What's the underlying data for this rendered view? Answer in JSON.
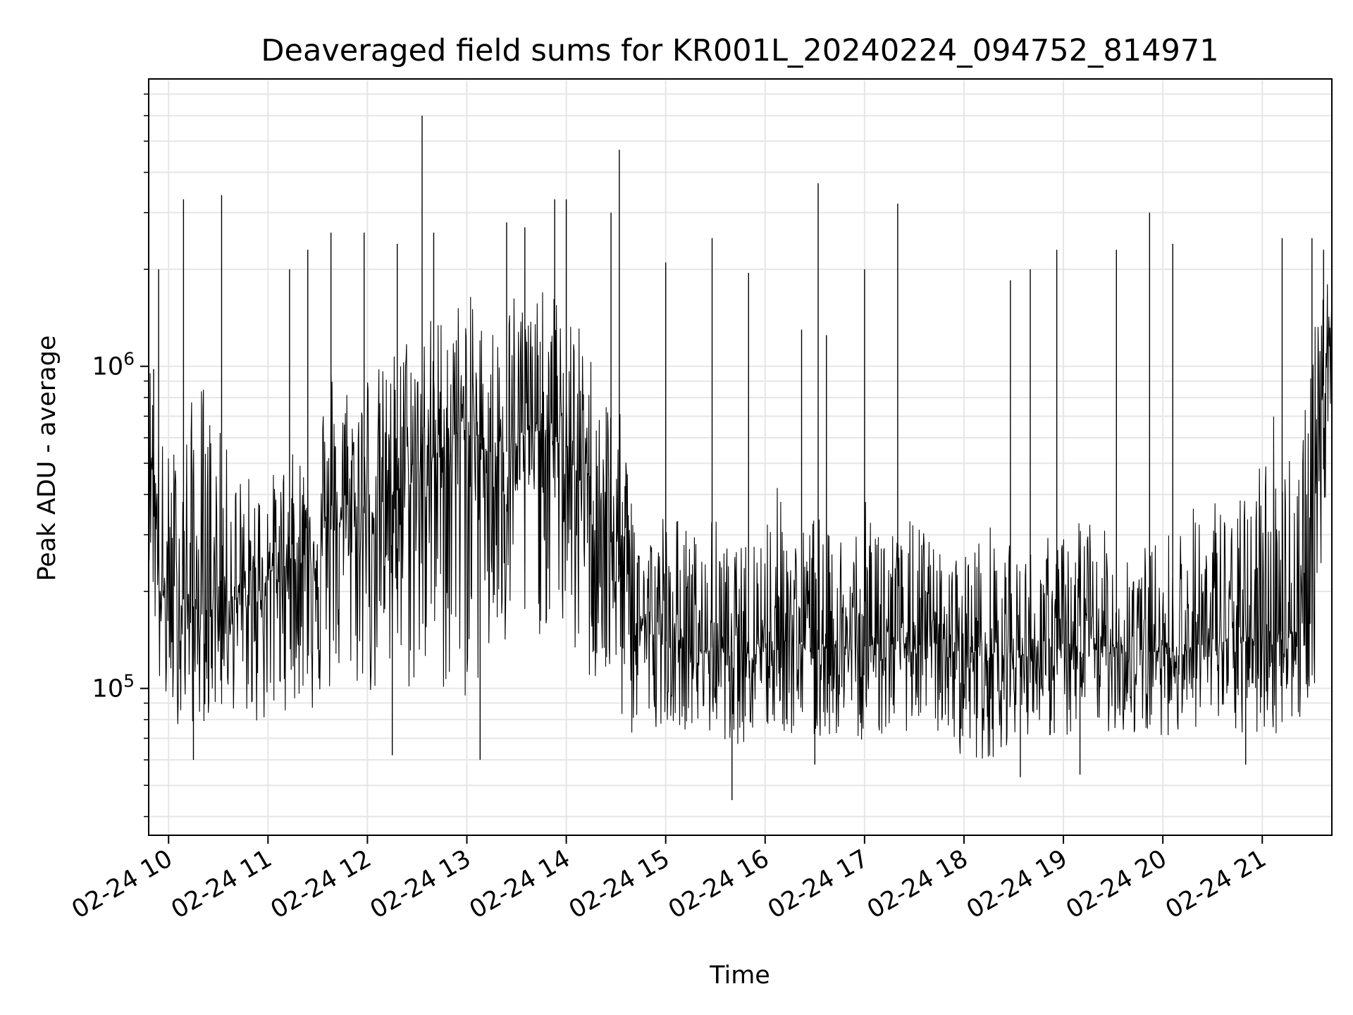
{
  "chart_data": {
    "type": "line",
    "title": "Deaveraged field sums for KR001L_20240224_094752_814971",
    "xlabel": "Time",
    "ylabel": "Peak ADU - average",
    "xscale": "date",
    "yscale": "log",
    "xlim": [
      "2024-02-24 09:48",
      "2024-02-24 21:42"
    ],
    "ylim": [
      35000,
      7800000
    ],
    "grid": true,
    "line_color": "#000000",
    "grid_color": "#e6e6e6",
    "x_ticks": [
      "2024-02-24 10:00",
      "2024-02-24 11:00",
      "2024-02-24 12:00",
      "2024-02-24 13:00",
      "2024-02-24 14:00",
      "2024-02-24 15:00",
      "2024-02-24 16:00",
      "2024-02-24 17:00",
      "2024-02-24 18:00",
      "2024-02-24 19:00",
      "2024-02-24 20:00",
      "2024-02-24 21:00"
    ],
    "x_tick_labels": [
      "02-24 10",
      "02-24 11",
      "02-24 12",
      "02-24 13",
      "02-24 14",
      "02-24 15",
      "02-24 16",
      "02-24 17",
      "02-24 18",
      "02-24 19",
      "02-24 20",
      "02-24 21"
    ],
    "y_ticks": [
      100000,
      1000000
    ],
    "y_tick_labels": [
      {
        "base": "10",
        "exp": "5"
      },
      {
        "base": "10",
        "exp": "6"
      }
    ],
    "series": [
      {
        "x": [
          "2024-02-24 09:48",
          "2024-02-24 09:55",
          "2024-02-24 10:00",
          "2024-02-24 10:10",
          "2024-02-24 10:20",
          "2024-02-24 10:30",
          "2024-02-24 10:40",
          "2024-02-24 10:50",
          "2024-02-24 11:00",
          "2024-02-24 11:10",
          "2024-02-24 11:20",
          "2024-02-24 11:30",
          "2024-02-24 11:40",
          "2024-02-24 11:50",
          "2024-02-24 12:00",
          "2024-02-24 12:10",
          "2024-02-24 12:20",
          "2024-02-24 12:30",
          "2024-02-24 12:40",
          "2024-02-24 12:50",
          "2024-02-24 13:00",
          "2024-02-24 13:10",
          "2024-02-24 13:20",
          "2024-02-24 13:30",
          "2024-02-24 13:40",
          "2024-02-24 13:50",
          "2024-02-24 14:00",
          "2024-02-24 14:10",
          "2024-02-24 14:20",
          "2024-02-24 14:30",
          "2024-02-24 14:40",
          "2024-02-24 14:50",
          "2024-02-24 15:00",
          "2024-02-24 15:10",
          "2024-02-24 15:20",
          "2024-02-24 15:30",
          "2024-02-24 15:40",
          "2024-02-24 15:50",
          "2024-02-24 16:00",
          "2024-02-24 16:10",
          "2024-02-24 16:20",
          "2024-02-24 16:30",
          "2024-02-24 16:40",
          "2024-02-24 16:50",
          "2024-02-24 17:00",
          "2024-02-24 17:10",
          "2024-02-24 17:20",
          "2024-02-24 17:30",
          "2024-02-24 17:40",
          "2024-02-24 17:50",
          "2024-02-24 18:00",
          "2024-02-24 18:10",
          "2024-02-24 18:20",
          "2024-02-24 18:30",
          "2024-02-24 18:40",
          "2024-02-24 18:50",
          "2024-02-24 19:00",
          "2024-02-24 19:10",
          "2024-02-24 19:20",
          "2024-02-24 19:30",
          "2024-02-24 19:40",
          "2024-02-24 19:50",
          "2024-02-24 20:00",
          "2024-02-24 20:10",
          "2024-02-24 20:20",
          "2024-02-24 20:30",
          "2024-02-24 20:40",
          "2024-02-24 20:50",
          "2024-02-24 21:00",
          "2024-02-24 21:10",
          "2024-02-24 21:20",
          "2024-02-24 21:30",
          "2024-02-24 21:35",
          "2024-02-24 21:42"
        ],
        "y": [
          800000,
          200000,
          180000,
          190000,
          170000,
          200000,
          190000,
          175000,
          230000,
          240000,
          260000,
          280000,
          320000,
          350000,
          350000,
          380000,
          420000,
          460000,
          520000,
          600000,
          650000,
          560000,
          520000,
          580000,
          650000,
          600000,
          560000,
          420000,
          350000,
          260000,
          180000,
          150000,
          140000,
          140000,
          130000,
          135000,
          130000,
          140000,
          140000,
          145000,
          140000,
          135000,
          140000,
          130000,
          135000,
          140000,
          140000,
          135000,
          140000,
          130000,
          130000,
          130000,
          125000,
          130000,
          125000,
          130000,
          130000,
          130000,
          135000,
          135000,
          130000,
          130000,
          130000,
          130000,
          135000,
          140000,
          140000,
          140000,
          145000,
          150000,
          150000,
          160000,
          700000,
          1500000
        ],
        "low": [
          260000,
          82000,
          80000,
          75000,
          78000,
          80000,
          85000,
          78000,
          70000,
          85000,
          90000,
          78000,
          95000,
          100000,
          92000,
          85000,
          90000,
          95000,
          100000,
          88000,
          90000,
          100000,
          110000,
          120000,
          140000,
          150000,
          140000,
          100000,
          95000,
          80000,
          68000,
          72000,
          80000,
          75000,
          72000,
          70000,
          68000,
          65000,
          70000,
          72000,
          68000,
          65000,
          70000,
          72000,
          68000,
          70000,
          72000,
          75000,
          72000,
          70000,
          60000,
          58000,
          62000,
          70000,
          72000,
          70000,
          68000,
          70000,
          75000,
          72000,
          70000,
          68000,
          72000,
          70000,
          75000,
          72000,
          70000,
          68000,
          70000,
          72000,
          75000,
          80000,
          180000,
          900000
        ],
        "high": [
          1100000,
          650000,
          560000,
          700000,
          1000000,
          650000,
          500000,
          470000,
          450000,
          520000,
          560000,
          800000,
          1200000,
          900000,
          1100000,
          1000000,
          1300000,
          1400000,
          1500000,
          1600000,
          1700000,
          1500000,
          1400000,
          2000000,
          1600000,
          1800000,
          1500000,
          1300000,
          1000000,
          800000,
          500000,
          320000,
          380000,
          340000,
          300000,
          350000,
          260000,
          300000,
          400000,
          450000,
          300000,
          380000,
          300000,
          350000,
          380000,
          420000,
          300000,
          350000,
          300000,
          250000,
          280000,
          300000,
          350000,
          260000,
          280000,
          300000,
          300000,
          400000,
          320000,
          300000,
          320000,
          280000,
          300000,
          350000,
          380000,
          420000,
          380000,
          400000,
          650000,
          900000,
          600000,
          1200000,
          1600000,
          2000000
        ],
        "spikes": [
          [
            "2024-02-24 09:51",
            980000
          ],
          [
            "2024-02-24 09:54",
            2000000
          ],
          [
            "2024-02-24 10:09",
            3300000
          ],
          [
            "2024-02-24 10:32",
            3400000
          ],
          [
            "2024-02-24 11:13",
            2000000
          ],
          [
            "2024-02-24 11:24",
            2300000
          ],
          [
            "2024-02-24 11:38",
            2600000
          ],
          [
            "2024-02-24 11:58",
            2600000
          ],
          [
            "2024-02-24 12:18",
            2400000
          ],
          [
            "2024-02-24 12:33",
            6000000
          ],
          [
            "2024-02-24 12:40",
            2600000
          ],
          [
            "2024-02-24 13:24",
            2800000
          ],
          [
            "2024-02-24 13:35",
            2700000
          ],
          [
            "2024-02-24 13:53",
            3300000
          ],
          [
            "2024-02-24 14:00",
            3300000
          ],
          [
            "2024-02-24 14:27",
            3000000
          ],
          [
            "2024-02-24 14:32",
            4700000
          ],
          [
            "2024-02-24 15:00",
            2100000
          ],
          [
            "2024-02-24 15:28",
            2500000
          ],
          [
            "2024-02-24 15:50",
            1950000
          ],
          [
            "2024-02-24 16:22",
            1300000
          ],
          [
            "2024-02-24 16:32",
            3700000
          ],
          [
            "2024-02-24 16:37",
            1250000
          ],
          [
            "2024-02-24 17:00",
            2000000
          ],
          [
            "2024-02-24 17:20",
            3200000
          ],
          [
            "2024-02-24 18:28",
            1850000
          ],
          [
            "2024-02-24 18:40",
            2000000
          ],
          [
            "2024-02-24 18:56",
            2300000
          ],
          [
            "2024-02-24 19:32",
            2300000
          ],
          [
            "2024-02-24 19:52",
            3000000
          ],
          [
            "2024-02-24 20:06",
            2400000
          ],
          [
            "2024-02-24 21:12",
            2500000
          ],
          [
            "2024-02-24 21:30",
            2500000
          ],
          [
            "2024-02-24 21:37",
            2300000
          ]
        ],
        "dips": [
          [
            "2024-02-24 10:15",
            60000
          ],
          [
            "2024-02-24 12:15",
            62000
          ],
          [
            "2024-02-24 13:08",
            60000
          ],
          [
            "2024-02-24 15:40",
            45000
          ],
          [
            "2024-02-24 16:30",
            58000
          ],
          [
            "2024-02-24 18:34",
            53000
          ],
          [
            "2024-02-24 19:10",
            54000
          ],
          [
            "2024-02-24 20:50",
            58000
          ]
        ]
      }
    ]
  }
}
